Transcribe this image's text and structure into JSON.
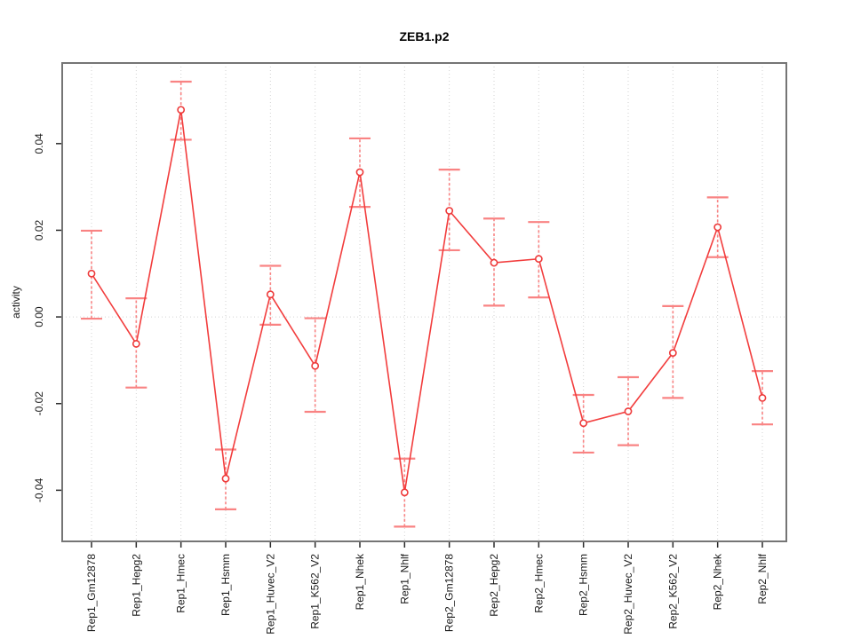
{
  "chart_data": {
    "type": "line",
    "title": "ZEB1.p2",
    "xlabel": "",
    "ylabel": "activity",
    "categories": [
      "Rep1_Gm12878",
      "Rep1_Hepg2",
      "Rep1_Hmec",
      "Rep1_Hsmm",
      "Rep1_Huvec_V2",
      "Rep1_K562_V2",
      "Rep1_Nhek",
      "Rep1_Nhlf",
      "Rep2_Gm12878",
      "Rep2_Hepg2",
      "Rep2_Hmec",
      "Rep2_Hsmm",
      "Rep2_Huvec_V2",
      "Rep2_K562_V2",
      "Rep2_Nhek",
      "Rep2_Nhlf"
    ],
    "values": [
      0.01,
      -0.0062,
      0.0478,
      -0.0373,
      0.0052,
      -0.0113,
      0.0334,
      -0.0405,
      0.0245,
      0.0125,
      0.0134,
      -0.0245,
      -0.0218,
      -0.0083,
      0.0207,
      -0.0187
    ],
    "err_low": [
      -0.0004,
      -0.0163,
      0.0409,
      -0.0444,
      -0.0018,
      -0.0219,
      0.0254,
      -0.0484,
      0.0154,
      0.0026,
      0.0045,
      -0.0313,
      -0.0296,
      -0.0187,
      0.0138,
      -0.0248
    ],
    "err_high": [
      0.0199,
      0.0043,
      0.0543,
      -0.0306,
      0.0118,
      -0.0003,
      0.0412,
      -0.0327,
      0.034,
      0.0227,
      0.0219,
      -0.018,
      -0.0139,
      0.0025,
      0.0276,
      -0.0125
    ],
    "ylim": [
      -0.0518,
      0.0586
    ],
    "ytick_values": [
      0.04,
      0.02,
      0.0,
      -0.02,
      -0.04
    ],
    "ytick_labels": [
      "0.04",
      "0.02",
      "0.00",
      "-0.02",
      "-0.04"
    ],
    "grid": "vertical dotted per category plus horizontal dotted at zero",
    "legend": "none",
    "colors": {
      "series_line": "#f23d3d",
      "error_bar": "#f98383",
      "point_marker": "#ee3a3a",
      "gridline": "#d2d2d2",
      "frame": "#757575",
      "tick": "#2a2a2a"
    }
  }
}
